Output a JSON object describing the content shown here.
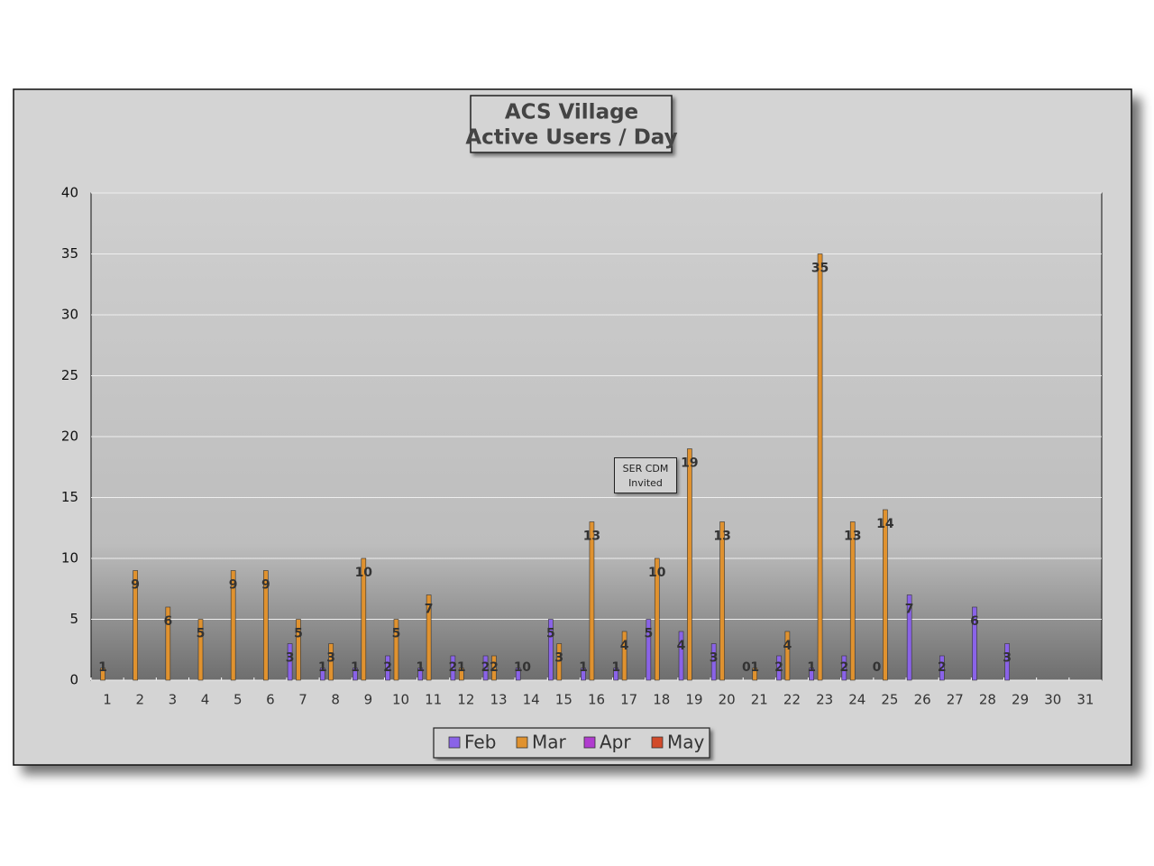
{
  "chart_data": {
    "type": "bar",
    "title": [
      "ACS Village",
      "Active Users / Day"
    ],
    "annotation": "SER CDM Invited",
    "categories": [
      "1",
      "2",
      "3",
      "4",
      "5",
      "6",
      "7",
      "8",
      "9",
      "10",
      "11",
      "12",
      "13",
      "14",
      "15",
      "16",
      "17",
      "18",
      "19",
      "20",
      "21",
      "22",
      "23",
      "24",
      "25",
      "26",
      "27",
      "28",
      "29",
      "30",
      "31"
    ],
    "series": [
      {
        "name": "Feb",
        "color": "#8a63e8",
        "values": [
          null,
          null,
          null,
          null,
          null,
          null,
          3,
          1,
          1,
          2,
          1,
          2,
          2,
          1,
          5,
          1,
          1,
          5,
          4,
          3,
          0,
          2,
          1,
          2,
          0,
          7,
          2,
          6,
          3,
          null,
          null
        ]
      },
      {
        "name": "Mar",
        "color": "#e0922f",
        "values": [
          1,
          9,
          6,
          5,
          9,
          9,
          5,
          3,
          10,
          5,
          7,
          1,
          2,
          0,
          3,
          13,
          4,
          10,
          19,
          13,
          1,
          4,
          35,
          13,
          14,
          null,
          null,
          null,
          null,
          null,
          null
        ]
      },
      {
        "name": "Apr",
        "color": "#b03ccf",
        "values": [
          null,
          null,
          null,
          null,
          null,
          null,
          null,
          null,
          null,
          null,
          null,
          null,
          null,
          null,
          null,
          null,
          null,
          null,
          null,
          null,
          null,
          null,
          null,
          null,
          null,
          null,
          null,
          null,
          null,
          null,
          null
        ]
      },
      {
        "name": "May",
        "color": "#d24a2a",
        "values": [
          null,
          null,
          null,
          null,
          null,
          null,
          null,
          null,
          null,
          null,
          null,
          null,
          null,
          null,
          null,
          null,
          null,
          null,
          null,
          null,
          null,
          null,
          null,
          null,
          null,
          null,
          null,
          null,
          null,
          null,
          null
        ]
      }
    ],
    "ylim": [
      0,
      40
    ],
    "yticks": [
      0,
      5,
      10,
      15,
      20,
      25,
      30,
      35,
      40
    ],
    "grid": true,
    "legend": "bottom"
  }
}
